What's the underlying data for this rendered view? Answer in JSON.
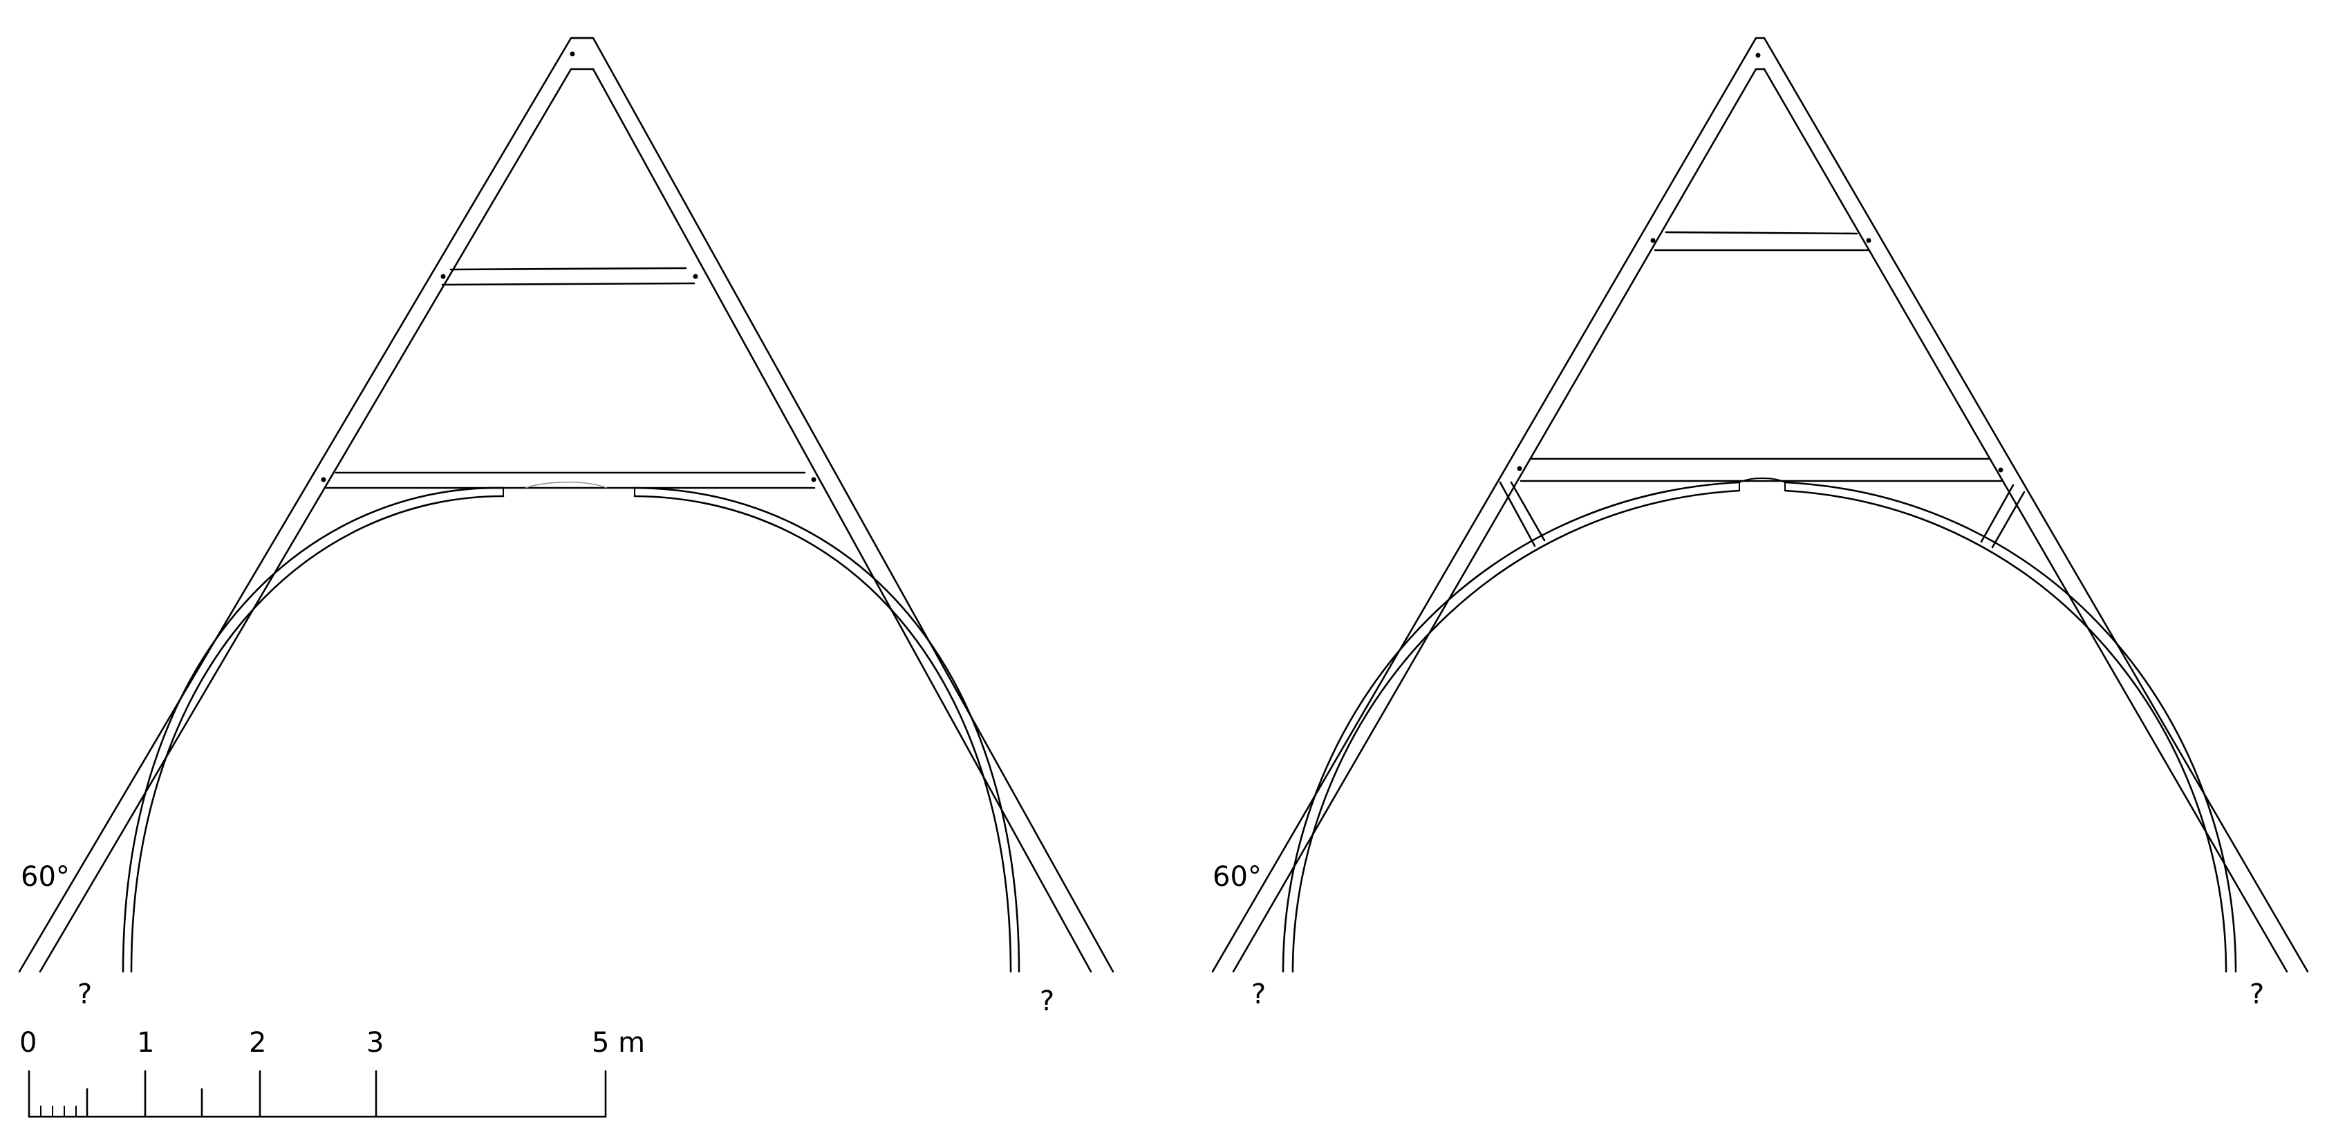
{
  "left_truss": {
    "angle_label": "60°",
    "left_unknown": "?",
    "right_unknown": "?"
  },
  "right_truss": {
    "angle_label": "60°",
    "left_unknown": "?",
    "right_unknown": "?"
  },
  "scale_bar": {
    "labels": [
      "0",
      "1",
      "2",
      "3",
      "5 m"
    ],
    "colors": {
      "line": "#000000",
      "background": "#ffffff"
    }
  }
}
